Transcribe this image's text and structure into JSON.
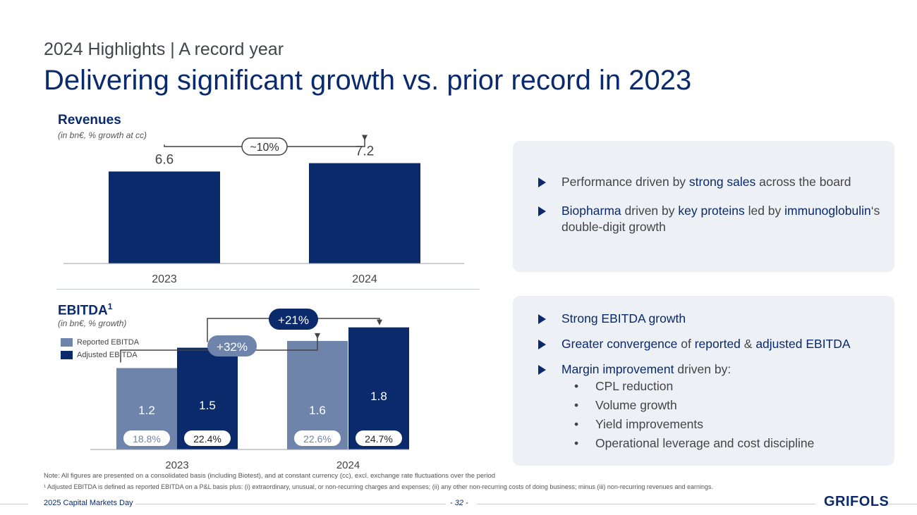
{
  "header": {
    "kicker": "2024 Highlights | A record year",
    "title": "Delivering significant growth vs. prior record in 2023"
  },
  "revenues": {
    "title": "Revenues",
    "subtitle": "(in bn€, % growth at cc)"
  },
  "ebitda": {
    "title": "EBITDA",
    "title_sup": "1",
    "subtitle": "(in bn€, % growth)",
    "legend": [
      "Reported EBITDA",
      "Adjusted EBITDA"
    ]
  },
  "colors": {
    "navy": "#0a2a6b",
    "reported": "#6f84aa",
    "panel": "#edf0f5"
  },
  "chart_data": [
    {
      "type": "bar",
      "categories": [
        "2023",
        "2024"
      ],
      "values": [
        6.6,
        7.2
      ],
      "value_labels": [
        "6.6",
        "7.2"
      ],
      "growth_label": "~10%",
      "ylim": [
        0,
        9.3
      ]
    },
    {
      "type": "bar",
      "categories": [
        "2023",
        "2024"
      ],
      "series": [
        {
          "name": "Reported EBITDA",
          "values": [
            1.2,
            1.6
          ],
          "value_labels": [
            "1.2",
            "1.6"
          ],
          "margins": [
            "18.8%",
            "22.6%"
          ]
        },
        {
          "name": "Adjusted EBITDA",
          "values": [
            1.5,
            1.8
          ],
          "value_labels": [
            "1.5",
            "1.8"
          ],
          "margins": [
            "22.4%",
            "24.7%"
          ]
        }
      ],
      "growth_labels": {
        "reported": "+32%",
        "adjusted": "+21%"
      },
      "ylim": [
        0,
        2.16
      ]
    }
  ],
  "panel_top": {
    "bullets": [
      [
        {
          "t": "Performance driven by ",
          "em": false
        },
        {
          "t": "strong sales",
          "em": true
        },
        {
          "t": " across the board",
          "em": false
        }
      ],
      [
        {
          "t": "Biopharma",
          "em": true
        },
        {
          "t": " driven by ",
          "em": false
        },
        {
          "t": "key proteins",
          "em": true
        },
        {
          "t": " led by ",
          "em": false
        },
        {
          "t": "immunoglobulin",
          "em": true
        },
        {
          "t": "‘s double-digit growth",
          "em": false
        }
      ]
    ]
  },
  "panel_bottom": {
    "bullets": [
      [
        {
          "t": "Strong EBITDA growth",
          "em": true
        }
      ],
      [
        {
          "t": "Greater convergence",
          "em": true
        },
        {
          "t": " of ",
          "em": false
        },
        {
          "t": "reported",
          "em": true
        },
        {
          "t": " & ",
          "em": false
        },
        {
          "t": "adjusted EBITDA",
          "em": true
        }
      ],
      [
        {
          "t": "Margin improvement",
          "em": true
        },
        {
          "t": " driven by:",
          "em": false
        }
      ]
    ],
    "sub_items": [
      "CPL reduction",
      "Volume growth",
      "Yield improvements",
      "Operational leverage and cost discipline"
    ]
  },
  "notes": {
    "note": "Note: All figures are presented on a consolidated basis (including Biotest), and at constant currency (cc), excl. exchange rate fluctuations over the period",
    "footnote": "¹ Adjusted EBITDA is defined as reported EBITDA on a P&L basis plus: (i) extraordinary, unusual, or non-recurring charges and expenses; (ii) any other non-recurring costs of doing business; minus (iii) non-recurring revenues and earnings."
  },
  "footer": {
    "event": "2025 Capital Markets Day",
    "page": "- 32 -",
    "logo": "GRIFOLS"
  }
}
